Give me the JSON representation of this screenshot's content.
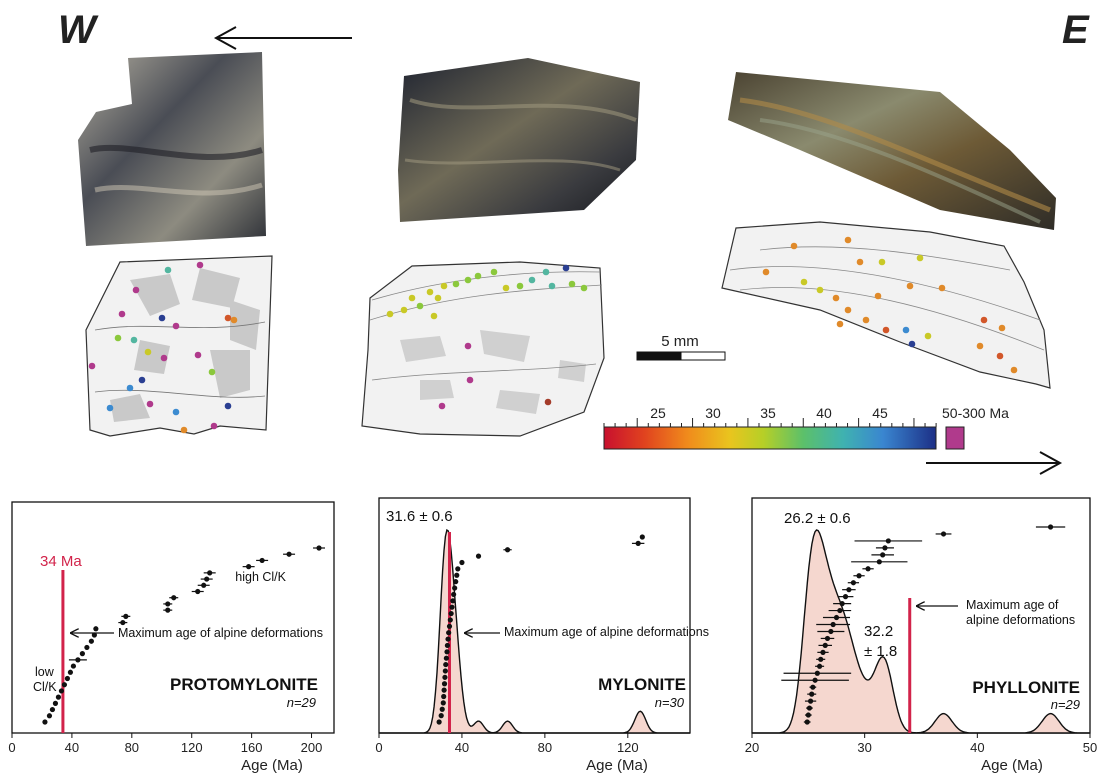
{
  "direction": {
    "west": "W",
    "east": "E"
  },
  "scale_bar": {
    "label": "5  mm"
  },
  "colorbar": {
    "ticks": [
      "25",
      "30",
      "35",
      "40",
      "45"
    ],
    "extra_label": "50-300 Ma",
    "extra_color": "#b03a8c"
  },
  "chart_data": [
    {
      "type": "scatter",
      "title": "PROTOMYLONITE",
      "n": "n=29",
      "xlabel": "Age (Ma)",
      "xticks": [
        "0",
        "40",
        "80",
        "120",
        "160",
        "200"
      ],
      "xlim": [
        0,
        215
      ],
      "reference_line": {
        "x": 34,
        "label": "34 Ma",
        "color": "#d2234a"
      },
      "annotations": {
        "arrow_text": "Maximum age of alpine deformations",
        "low": [
          "low",
          "Cl/K"
        ],
        "high": "high Cl/K"
      },
      "ages": [
        22,
        25,
        27,
        29,
        31,
        33,
        35,
        37,
        39,
        41,
        44,
        47,
        50,
        53,
        55,
        56,
        74,
        76,
        104,
        104,
        108,
        124,
        128,
        130,
        132,
        158,
        167,
        185,
        205
      ],
      "errors": [
        0.5,
        0.5,
        0.5,
        0.5,
        0.5,
        0.5,
        0.5,
        0.5,
        0.5,
        0.5,
        6,
        0.5,
        0.5,
        0.5,
        0.5,
        0.5,
        3,
        3,
        3,
        3,
        3,
        4,
        4,
        4,
        4,
        4,
        4,
        4,
        4
      ]
    },
    {
      "type": "scatter",
      "title": "MYLONITE",
      "n": "n=30",
      "xlabel": "Age (Ma)",
      "xticks": [
        "0",
        "40",
        "80",
        "120"
      ],
      "xlim": [
        0,
        150
      ],
      "reference_line": {
        "x": 34,
        "color": "#d2234a"
      },
      "peak_label": "31.6 ± 0.6",
      "annotations": {
        "arrow_text": "Maximum age of alpine deformations"
      },
      "ages": [
        29,
        30,
        30.5,
        31,
        31.2,
        31.4,
        31.6,
        31.8,
        32,
        32.2,
        32.5,
        32.8,
        33,
        33.3,
        33.6,
        34,
        34.4,
        34.8,
        35.2,
        35.6,
        36,
        36.5,
        37,
        37.5,
        38,
        40,
        48,
        62,
        125,
        127
      ],
      "errors": [
        1,
        1,
        1,
        1,
        1,
        1,
        1,
        1,
        1,
        1,
        1,
        1,
        1,
        1,
        1,
        1,
        1,
        1,
        1,
        1,
        1,
        1,
        1,
        1,
        1,
        1,
        1,
        2,
        3,
        1
      ]
    },
    {
      "type": "scatter",
      "title": "PHYLLONITE",
      "n": "n=29",
      "xlabel": "Age (Ma)",
      "xticks": [
        "20",
        "30",
        "40",
        "50"
      ],
      "xlim": [
        20,
        50
      ],
      "reference_line": {
        "x": 34,
        "color": "#d2234a"
      },
      "peak_label": "26.2 ± 0.6",
      "second_peak_label": [
        "32.2",
        "± 1.8"
      ],
      "annotations": {
        "arrow_text": [
          "Maximum age of",
          "alpine deformations"
        ]
      },
      "ages": [
        24.9,
        25,
        25.1,
        25.2,
        25.3,
        25.4,
        25.6,
        25.8,
        26,
        26.1,
        26.3,
        26.5,
        26.7,
        27,
        27.2,
        27.5,
        27.8,
        28,
        28.3,
        28.6,
        29,
        29.5,
        30.3,
        31.3,
        31.6,
        31.8,
        32.1,
        37,
        46.5
      ],
      "errors": [
        0.3,
        0.3,
        0.3,
        0.5,
        0.4,
        0.3,
        3,
        3,
        0.4,
        0.4,
        0.5,
        0.6,
        0.6,
        1.2,
        1.5,
        1.2,
        1,
        0.8,
        0.7,
        0.6,
        0.5,
        0.5,
        0.5,
        2.5,
        1,
        0.8,
        3,
        0.7,
        1.3
      ]
    }
  ]
}
